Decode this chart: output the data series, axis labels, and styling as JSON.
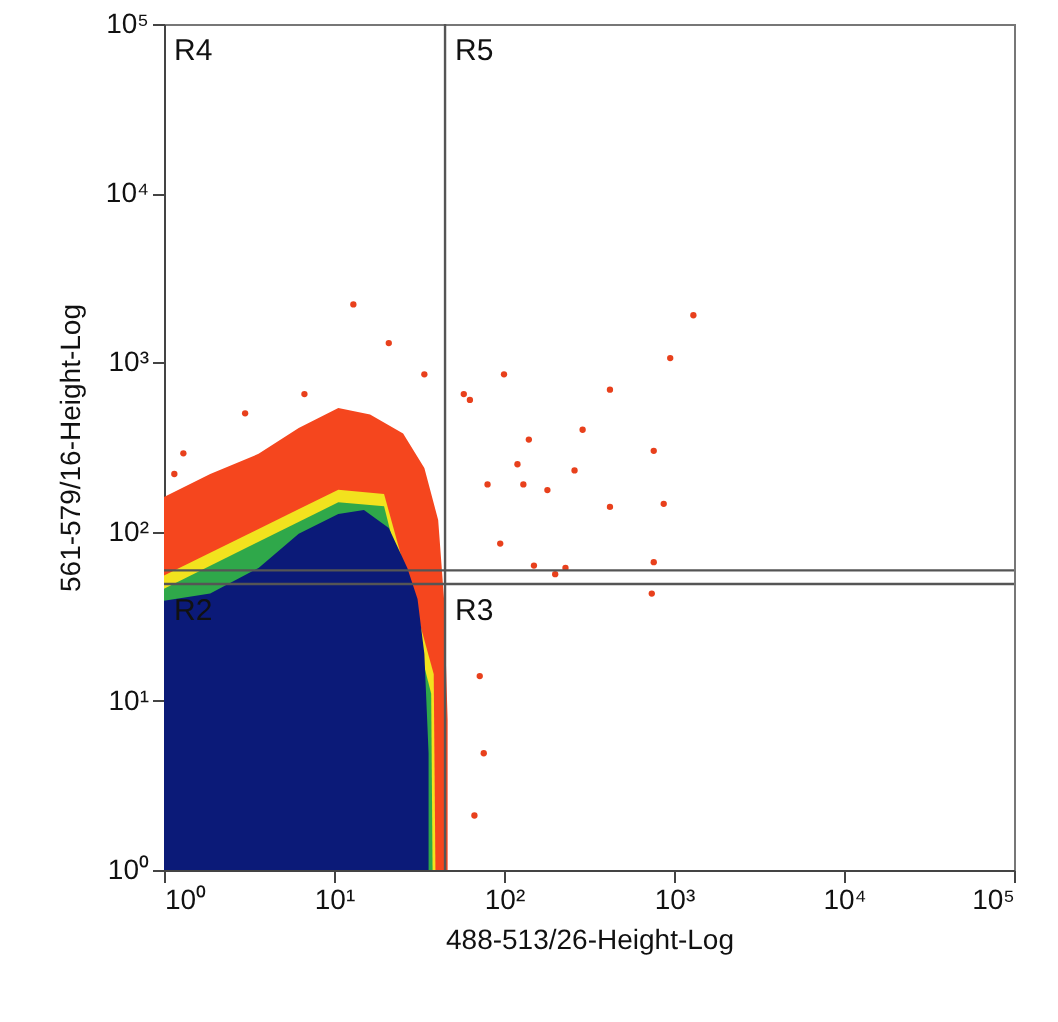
{
  "chart_data": {
    "type": "scatter",
    "xlabel": "488-513/26-Height-Log",
    "ylabel": "561-579/16-Height-Log",
    "log": "xy",
    "xlim": [
      1,
      100000
    ],
    "ylim": [
      1,
      100000
    ],
    "xticks": [
      {
        "value": 1,
        "label": "10⁰"
      },
      {
        "value": 10,
        "label": "10¹"
      },
      {
        "value": 100,
        "label": "10²"
      },
      {
        "value": 1000,
        "label": "10³"
      },
      {
        "value": 10000,
        "label": "10⁴"
      },
      {
        "value": 100000,
        "label": "10⁵"
      }
    ],
    "yticks": [
      {
        "value": 1,
        "label": "10⁰"
      },
      {
        "value": 10,
        "label": "10¹"
      },
      {
        "value": 100,
        "label": "10²"
      },
      {
        "value": 1000,
        "label": "10³"
      },
      {
        "value": 10000,
        "label": "10⁴"
      },
      {
        "value": 100000,
        "label": "10⁵"
      }
    ],
    "series": [
      {
        "type": "area",
        "color": "#f5461e",
        "x": [
          1,
          1.87,
          3.6,
          6.2,
          10.6,
          16.3,
          25.5,
          34,
          41,
          44.4,
          46.6,
          46.6
        ],
        "values": [
          160,
          219,
          288,
          410,
          537,
          492,
          380,
          238,
          117,
          40,
          7.7,
          1
        ]
      },
      {
        "type": "area",
        "color": "#f2e21e",
        "x": [
          1,
          3.6,
          10.6,
          19.7,
          27,
          34,
          38.6,
          39.5
        ],
        "values": [
          55,
          null,
          177,
          167,
          null,
          null,
          14.4,
          1
        ]
      },
      {
        "type": "area",
        "color": "#2fa84a",
        "x": [
          1,
          3.6,
          10.6,
          19.7,
          27,
          33,
          37.3,
          38
        ],
        "values": [
          46,
          null,
          149,
          141,
          null,
          null,
          11,
          1
        ]
      },
      {
        "type": "area",
        "color": "#0b1a78",
        "x": [
          1,
          1.87,
          3.6,
          6.2,
          10.6,
          15,
          21,
          27,
          31,
          34,
          36,
          36
        ],
        "values": [
          39,
          43,
          61,
          97,
          127,
          134,
          105,
          61,
          40,
          19,
          4.9,
          1
        ]
      },
      {
        "color": "#e8401c",
        "x": [
          13,
          21,
          3.0,
          1.3,
          58,
          80,
          95,
          130,
          200,
          72,
          76,
          67,
          1300,
          950,
          420,
          100,
          290,
          760,
          870,
          420,
          760,
          740,
          230,
          150,
          180,
          260,
          140,
          63,
          120,
          6.7,
          34,
          1.15
        ],
        "values": [
          2200,
          1300,
          500,
          290,
          650,
          190,
          85,
          190,
          56,
          14,
          4.9,
          2.1,
          1900,
          1060,
          690,
          850,
          400,
          300,
          146,
          140,
          66,
          43,
          61,
          63,
          176,
          230,
          350,
          600,
          250,
          650,
          850,
          219
        ]
      }
    ],
    "ref_lines": [
      {
        "axis": "x",
        "value": 45
      },
      {
        "axis": "y",
        "value": 59
      },
      {
        "axis": "y",
        "value": 49
      }
    ],
    "annotations": [
      "R4",
      "R5",
      "R2",
      "R3"
    ]
  }
}
